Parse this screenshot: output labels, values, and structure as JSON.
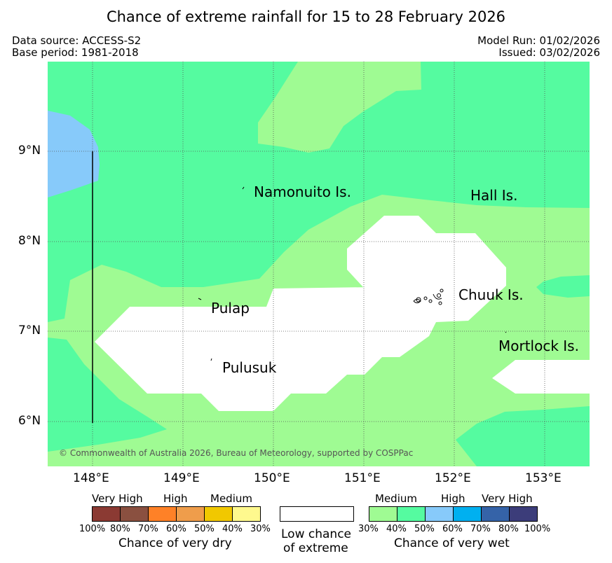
{
  "header": {
    "title": "Chance of extreme rainfall for 15 to 28 February 2026",
    "data_source": "Data source: ACCESS-S2",
    "base_period": "Base period: 1981-2018",
    "model_run": "Model Run: 01/02/2026",
    "issued": "Issued: 03/02/2026"
  },
  "map": {
    "lat_labels": [
      "9°N",
      "8°N",
      "7°N",
      "6°N"
    ],
    "lon_labels": [
      "148°E",
      "149°E",
      "150°E",
      "151°E",
      "152°E",
      "153°E"
    ],
    "places": [
      "Namonuito Is.",
      "Hall Is.",
      "Pulap",
      "Chuuk Is.",
      "Mortlock Is.",
      "Pulusuk"
    ],
    "copyright": "© Commonwealth of Australia 2026, Bureau of Meteorology, supported by COSPPac",
    "colors": {
      "medium_wet_30_40": "#9ffb93",
      "medium_wet_40_50": "#55fba0",
      "high_wet_50_60": "#87cafa",
      "low_chance": "#ffffff"
    }
  },
  "legend": {
    "dry": {
      "categories": [
        "Very High",
        "High",
        "Medium"
      ],
      "percent_labels": [
        "100%",
        "80%",
        "70%",
        "60%",
        "50%",
        "40%",
        "30%"
      ],
      "colors": [
        "#8b3a33",
        "#8a5040",
        "#fe8127",
        "#ef9d4b",
        "#f1c800",
        "#fef98e"
      ],
      "caption": "Chance of very dry"
    },
    "low": {
      "caption_line1": "Low chance",
      "caption_line2": "of extreme"
    },
    "wet": {
      "categories": [
        "Medium",
        "High",
        "Very High"
      ],
      "percent_labels": [
        "30%",
        "40%",
        "50%",
        "60%",
        "70%",
        "80%",
        "100%"
      ],
      "colors": [
        "#9ffb93",
        "#55fba0",
        "#87cafa",
        "#00b0f0",
        "#3563a8",
        "#3c3d7a"
      ],
      "caption": "Chance of very wet"
    }
  }
}
